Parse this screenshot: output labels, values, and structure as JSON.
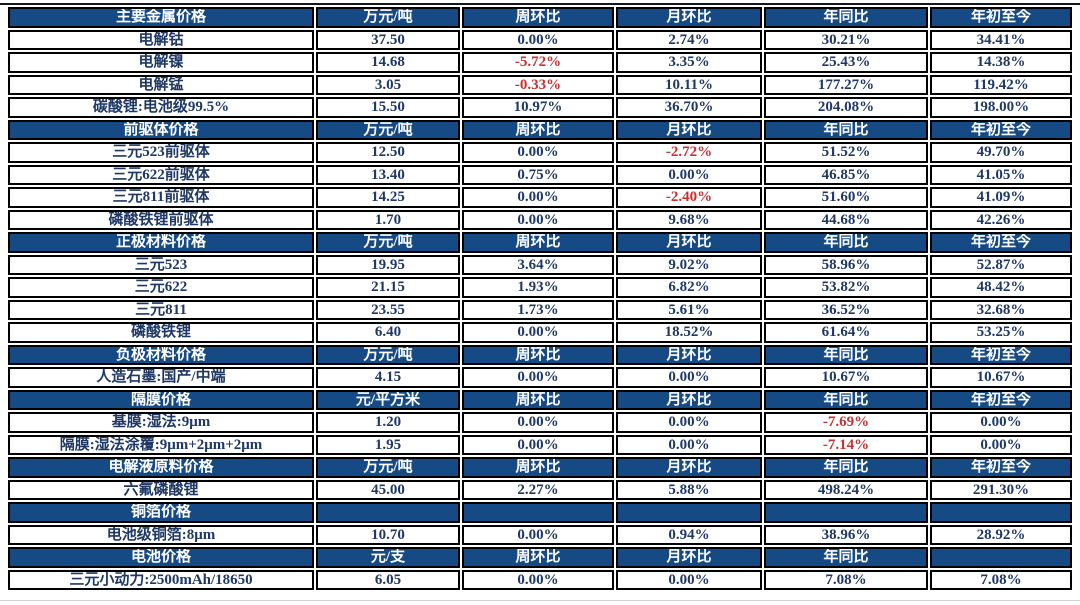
{
  "page": {
    "background": "#ffffff"
  },
  "table": {
    "colors": {
      "header_bg": "#164a85",
      "header_text": "#ffffff",
      "data_text": "#1f3864",
      "negative_text": "#c43232",
      "border": "#000000"
    },
    "sections": [
      {
        "title": "主要金属价格",
        "unit": "万元/吨",
        "col_headers": [
          "周环比",
          "月环比",
          "年同比",
          "年初至今"
        ],
        "rows": [
          {
            "label": "电解钴",
            "values": [
              "37.50",
              "0.00%",
              "2.74%",
              "30.21%",
              "34.41%"
            ]
          },
          {
            "label": "电解镍",
            "values": [
              "14.68",
              "-5.72%",
              "3.35%",
              "25.43%",
              "14.38%"
            ]
          },
          {
            "label": "电解锰",
            "values": [
              "3.05",
              "-0.33%",
              "10.11%",
              "177.27%",
              "119.42%"
            ]
          },
          {
            "label": "碳酸锂:电池级99.5%",
            "values": [
              "15.50",
              "10.97%",
              "36.70%",
              "204.08%",
              "198.00%"
            ]
          }
        ]
      },
      {
        "title": "前驱体价格",
        "unit": "万元/吨",
        "col_headers": [
          "周环比",
          "月环比",
          "年同比",
          "年初至今"
        ],
        "rows": [
          {
            "label": "三元523前驱体",
            "values": [
              "12.50",
              "0.00%",
              "-2.72%",
              "51.52%",
              "49.70%"
            ]
          },
          {
            "label": "三元622前驱体",
            "values": [
              "13.40",
              "0.75%",
              "0.00%",
              "46.85%",
              "41.05%"
            ]
          },
          {
            "label": "三元811前驱体",
            "values": [
              "14.25",
              "0.00%",
              "-2.40%",
              "51.60%",
              "41.09%"
            ]
          },
          {
            "label": "磷酸铁锂前驱体",
            "values": [
              "1.70",
              "0.00%",
              "9.68%",
              "44.68%",
              "42.26%"
            ]
          }
        ]
      },
      {
        "title": "正极材料价格",
        "unit": "万元/吨",
        "col_headers": [
          "周环比",
          "月环比",
          "年同比",
          "年初至今"
        ],
        "rows": [
          {
            "label": "三元523",
            "values": [
              "19.95",
              "3.64%",
              "9.02%",
              "58.96%",
              "52.87%"
            ]
          },
          {
            "label": "三元622",
            "values": [
              "21.15",
              "1.93%",
              "6.82%",
              "53.82%",
              "48.42%"
            ]
          },
          {
            "label": "三元811",
            "values": [
              "23.55",
              "1.73%",
              "5.61%",
              "36.52%",
              "32.68%"
            ]
          },
          {
            "label": "磷酸铁锂",
            "values": [
              "6.40",
              "0.00%",
              "18.52%",
              "61.64%",
              "53.25%"
            ]
          }
        ]
      },
      {
        "title": "负极材料价格",
        "unit": "万元/吨",
        "col_headers": [
          "周环比",
          "月环比",
          "年同比",
          "年初至今"
        ],
        "rows": [
          {
            "label": "人造石墨:国产/中端",
            "values": [
              "4.15",
              "0.00%",
              "0.00%",
              "10.67%",
              "10.67%"
            ]
          }
        ]
      },
      {
        "title": "隔膜价格",
        "unit": "元/平方米",
        "col_headers": [
          "周环比",
          "月环比",
          "年同比",
          "年初至今"
        ],
        "rows": [
          {
            "label": "基膜:湿法:9μm",
            "values": [
              "1.20",
              "0.00%",
              "0.00%",
              "-7.69%",
              "0.00%"
            ]
          },
          {
            "label": "隔膜:湿法涂覆:9μm+2μm+2μm",
            "values": [
              "1.95",
              "0.00%",
              "0.00%",
              "-7.14%",
              "0.00%"
            ]
          }
        ]
      },
      {
        "title": "电解液原料价格",
        "unit": "万元/吨",
        "col_headers": [
          "周环比",
          "月环比",
          "年同比",
          "年初至今"
        ],
        "rows": [
          {
            "label": "六氟磷酸锂",
            "values": [
              "45.00",
              "2.27%",
              "5.88%",
              "498.24%",
              "291.30%"
            ]
          }
        ]
      },
      {
        "title": "铜箔价格",
        "unit": "",
        "col_headers": [
          "",
          "",
          "",
          ""
        ],
        "rows": [
          {
            "label": "电池级铜箔:8μm",
            "values": [
              "10.70",
              "0.00%",
              "0.94%",
              "38.96%",
              "28.92%"
            ]
          }
        ]
      },
      {
        "title": "电池价格",
        "unit": "元/支",
        "col_headers": [
          "周环比",
          "月环比",
          "年同比",
          ""
        ],
        "rows": [
          {
            "label": "三元小动力:2500mAh/18650",
            "values": [
              "6.05",
              "0.00%",
              "0.00%",
              "7.08%",
              "7.08%"
            ]
          }
        ]
      }
    ]
  }
}
